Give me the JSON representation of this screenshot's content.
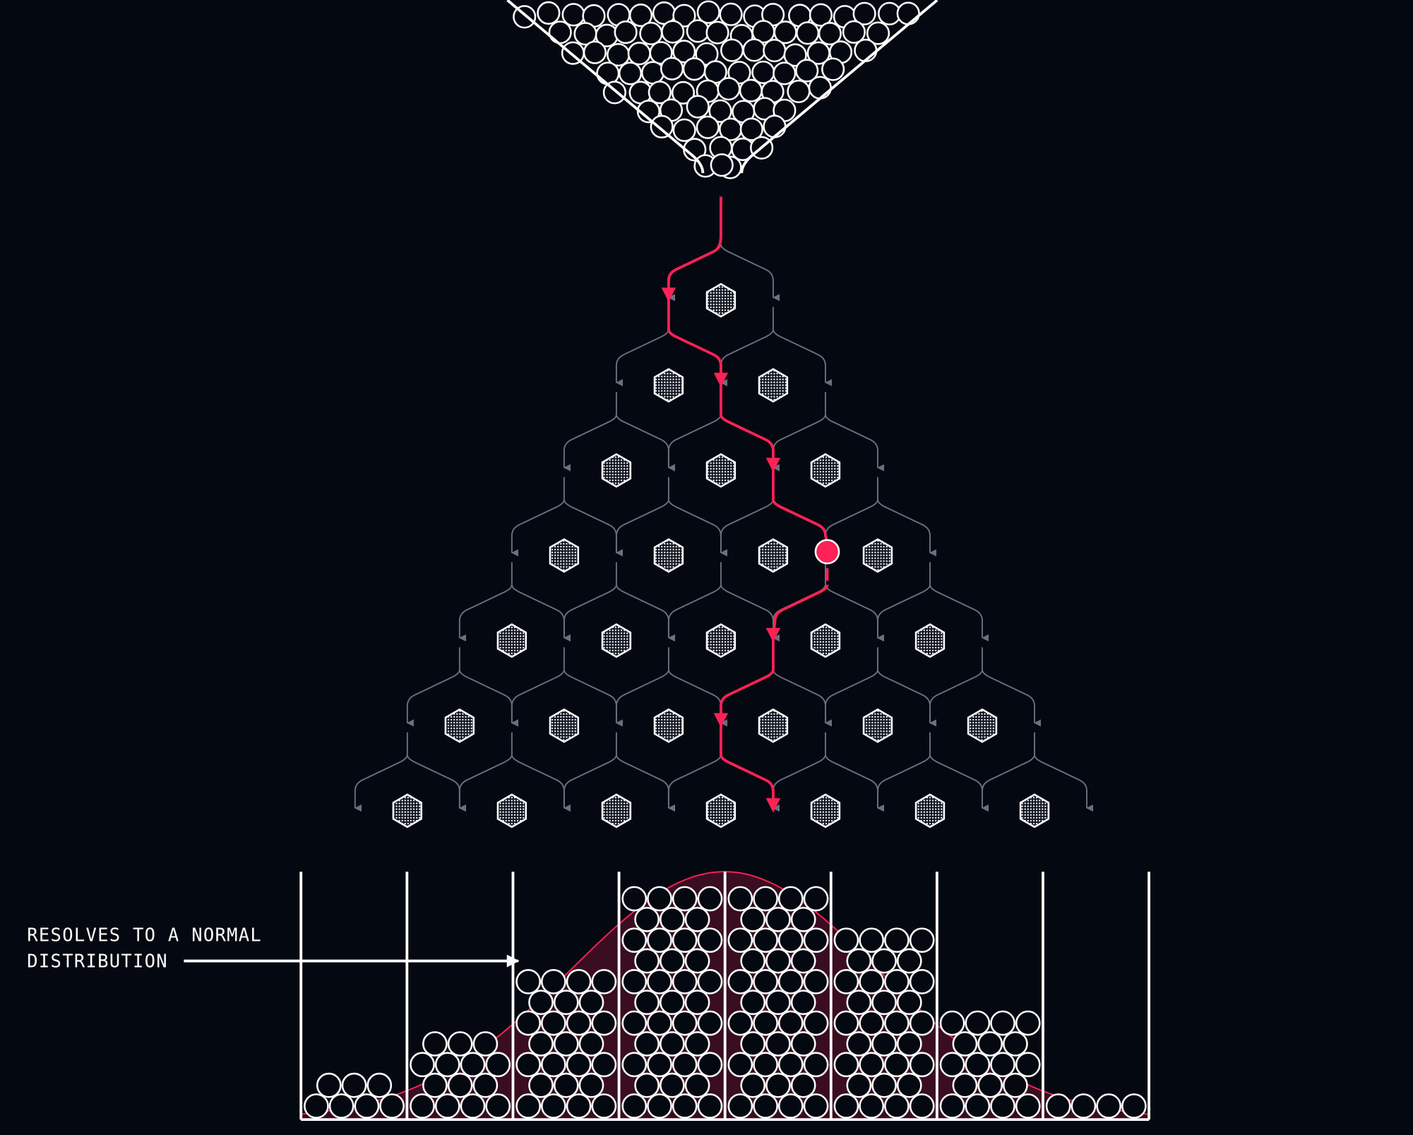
{
  "annotation": {
    "lines": [
      "RESOLVES TO A NORMAL",
      "DISTRIBUTION"
    ]
  }
}
